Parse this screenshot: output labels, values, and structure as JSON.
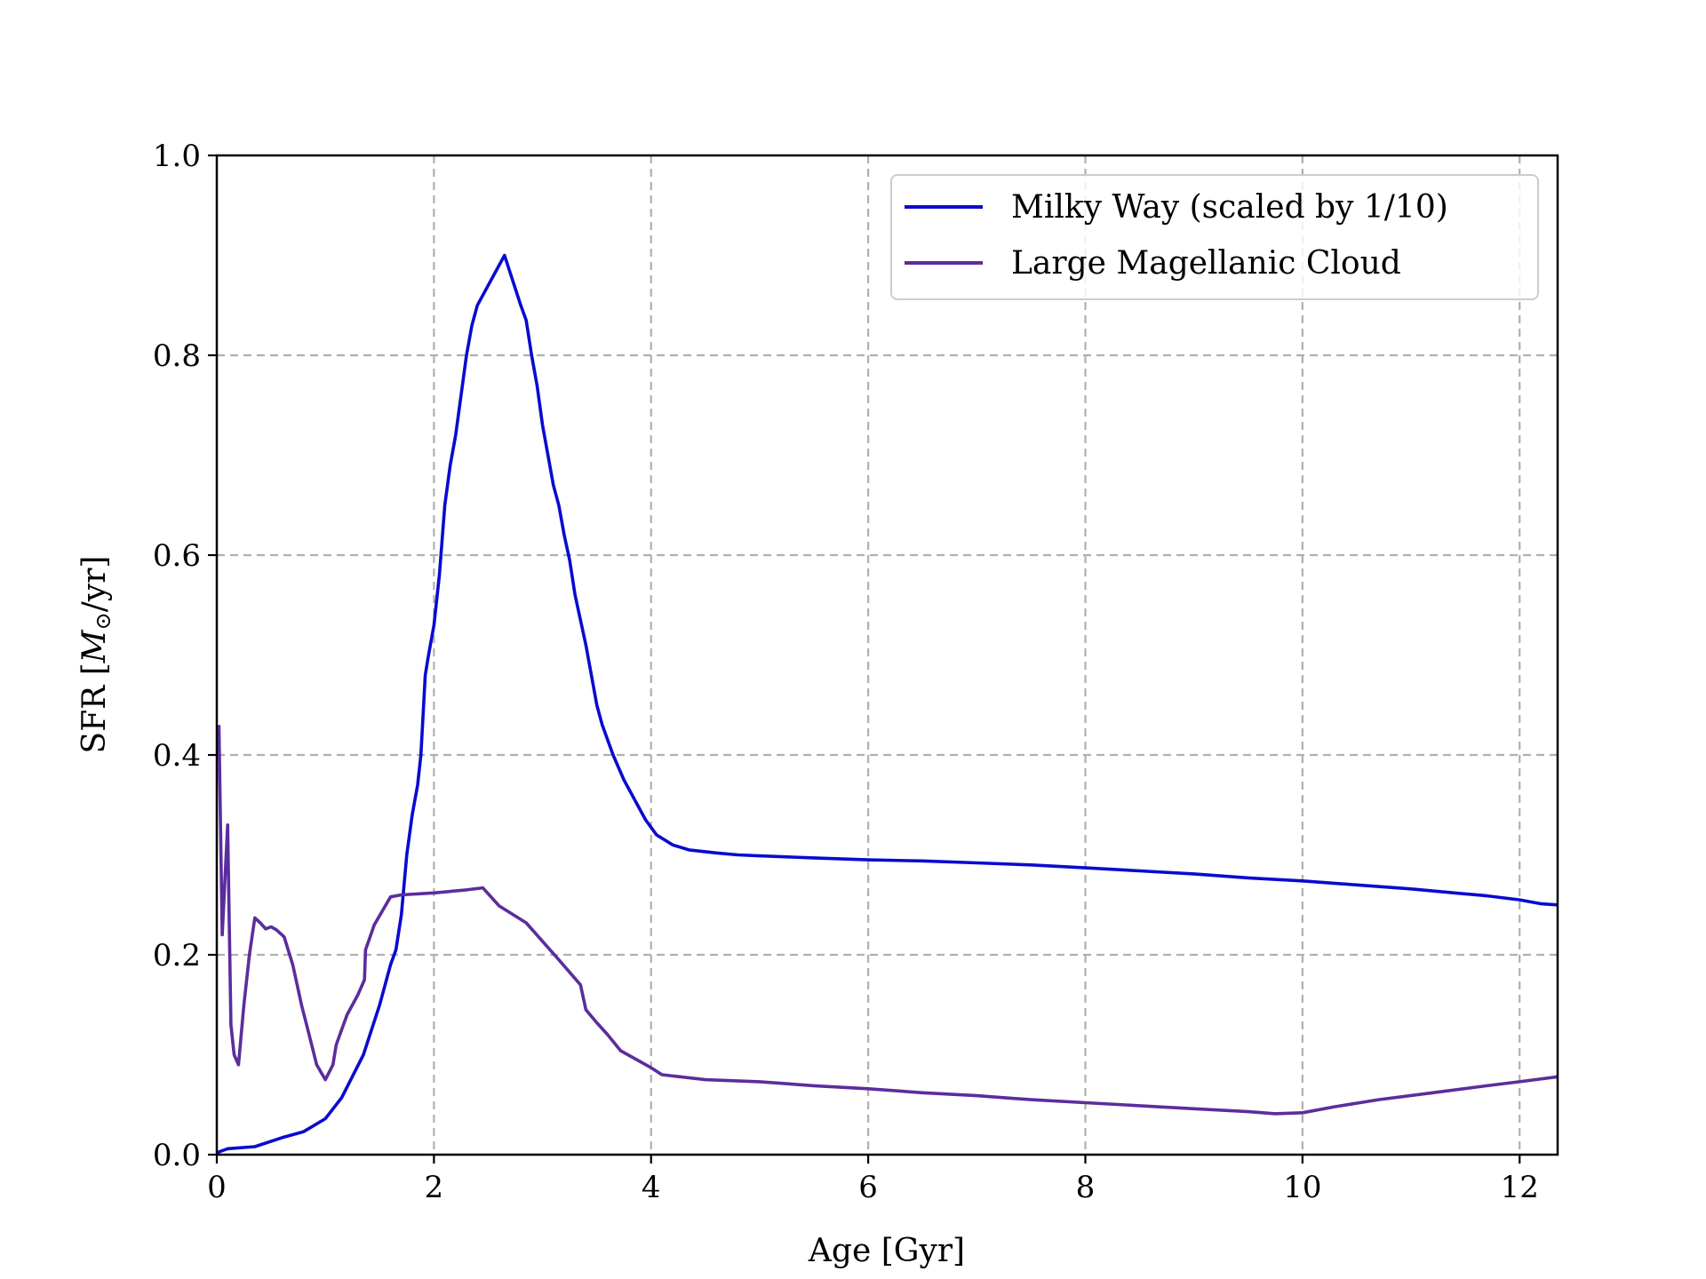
{
  "chart_data": {
    "type": "line",
    "title": "",
    "xlabel": "Age [Gyr]",
    "ylabel_prefix": "SFR [",
    "ylabel_math": "M",
    "ylabel_sub": "⊙",
    "ylabel_suffix": "/yr]",
    "xlim": [
      0,
      12.35
    ],
    "ylim": [
      0,
      1.0
    ],
    "xticks": [
      0,
      2,
      4,
      6,
      8,
      10,
      12
    ],
    "xtick_labels": [
      "0",
      "2",
      "4",
      "6",
      "8",
      "10",
      "12"
    ],
    "yticks": [
      0.0,
      0.2,
      0.4,
      0.6,
      0.8,
      1.0
    ],
    "ytick_labels": [
      "0.0",
      "0.2",
      "0.4",
      "0.6",
      "0.8",
      "1.0"
    ],
    "grid": true,
    "legend_position": "top-right",
    "series": [
      {
        "name": "Milky Way (scaled by 1/10)",
        "color": "#0a0ad0",
        "x": [
          0.0,
          0.1,
          0.35,
          0.6,
          0.8,
          1.0,
          1.15,
          1.35,
          1.5,
          1.6,
          1.65,
          1.7,
          1.75,
          1.8,
          1.85,
          1.88,
          1.92,
          1.95,
          2.0,
          2.05,
          2.1,
          2.15,
          2.2,
          2.3,
          2.35,
          2.4,
          2.65,
          2.8,
          2.85,
          2.9,
          2.95,
          3.0,
          3.05,
          3.1,
          3.15,
          3.2,
          3.25,
          3.3,
          3.35,
          3.4,
          3.5,
          3.55,
          3.65,
          3.75,
          3.85,
          3.95,
          4.05,
          4.2,
          4.35,
          4.6,
          4.8,
          5.0,
          5.5,
          6.0,
          6.5,
          7.0,
          7.5,
          8.0,
          8.5,
          9.0,
          9.5,
          10.0,
          10.5,
          11.0,
          11.5,
          11.7,
          12.0,
          12.2,
          12.35
        ],
        "y": [
          0.002,
          0.006,
          0.008,
          0.017,
          0.023,
          0.036,
          0.057,
          0.1,
          0.15,
          0.19,
          0.205,
          0.24,
          0.3,
          0.34,
          0.37,
          0.4,
          0.48,
          0.5,
          0.53,
          0.58,
          0.65,
          0.69,
          0.72,
          0.8,
          0.83,
          0.85,
          0.9,
          0.85,
          0.835,
          0.8,
          0.77,
          0.73,
          0.7,
          0.67,
          0.65,
          0.62,
          0.595,
          0.56,
          0.535,
          0.51,
          0.45,
          0.43,
          0.4,
          0.375,
          0.355,
          0.335,
          0.32,
          0.31,
          0.305,
          0.302,
          0.3,
          0.299,
          0.297,
          0.295,
          0.294,
          0.292,
          0.29,
          0.287,
          0.284,
          0.281,
          0.277,
          0.274,
          0.27,
          0.266,
          0.261,
          0.259,
          0.255,
          0.251,
          0.25
        ]
      },
      {
        "name": "Large Magellanic Cloud",
        "color": "#5b2d9c",
        "x": [
          0.02,
          0.05,
          0.1,
          0.13,
          0.16,
          0.2,
          0.25,
          0.3,
          0.35,
          0.4,
          0.45,
          0.5,
          0.55,
          0.62,
          0.7,
          0.78,
          0.85,
          0.92,
          1.0,
          1.07,
          1.1,
          1.2,
          1.3,
          1.36,
          1.37,
          1.45,
          1.6,
          1.7,
          2.0,
          2.3,
          2.45,
          2.6,
          2.85,
          3.15,
          3.35,
          3.4,
          3.5,
          3.6,
          3.72,
          4.0,
          4.1,
          4.5,
          5.0,
          5.5,
          6.0,
          6.5,
          7.0,
          7.5,
          8.0,
          8.5,
          9.0,
          9.5,
          9.75,
          10.0,
          10.3,
          10.7,
          11.2,
          11.7,
          12.0,
          12.35
        ],
        "y": [
          0.43,
          0.22,
          0.33,
          0.13,
          0.1,
          0.09,
          0.15,
          0.2,
          0.237,
          0.232,
          0.226,
          0.228,
          0.225,
          0.218,
          0.19,
          0.15,
          0.12,
          0.09,
          0.075,
          0.09,
          0.11,
          0.14,
          0.16,
          0.175,
          0.205,
          0.23,
          0.258,
          0.26,
          0.262,
          0.265,
          0.267,
          0.249,
          0.232,
          0.195,
          0.17,
          0.145,
          0.132,
          0.12,
          0.104,
          0.087,
          0.08,
          0.075,
          0.073,
          0.069,
          0.066,
          0.062,
          0.059,
          0.055,
          0.052,
          0.049,
          0.046,
          0.043,
          0.041,
          0.042,
          0.048,
          0.055,
          0.062,
          0.069,
          0.073,
          0.078
        ]
      }
    ]
  }
}
